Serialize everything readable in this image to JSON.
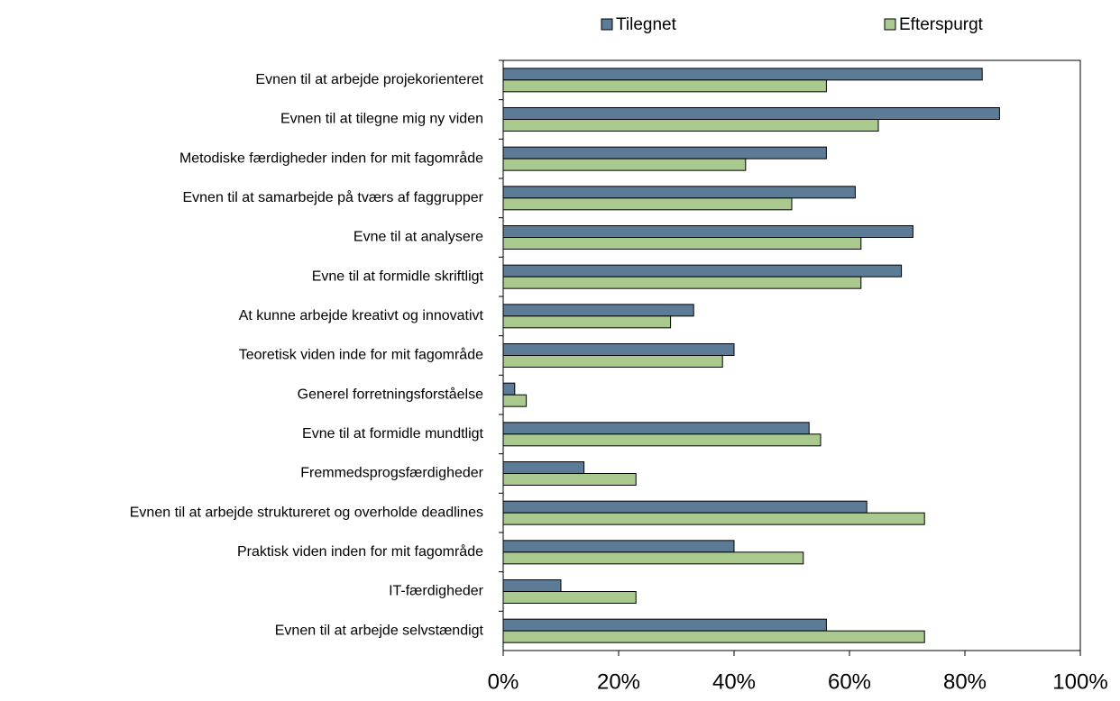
{
  "chart_data": {
    "type": "barh",
    "categories": [
      "Evnen til at arbejde projekorienteret",
      "Evnen til at tilegne mig ny viden",
      "Metodiske færdigheder inden for mit fagområde",
      "Evnen til at samarbejde på tværs af faggrupper",
      "Evne til at analysere",
      "Evne til at formidle skriftligt",
      "At kunne arbejde kreativt og innovativt",
      "Teoretisk viden inde for mit fagområde",
      "Generel forretningsforståelse",
      "Evne til at formidle mundtligt",
      "Fremmedsprogsfærdigheder",
      "Evnen til at arbejde struktureret og overholde deadlines",
      "Praktisk viden inden for mit fagområde",
      "IT-færdigheder",
      "Evnen til at arbejde selvstændigt"
    ],
    "series": [
      {
        "name": "Tilegnet",
        "color": "#5b7b97",
        "values": [
          83,
          86,
          56,
          61,
          71,
          69,
          33,
          40,
          2,
          53,
          14,
          63,
          40,
          10,
          56
        ]
      },
      {
        "name": "Efterspurgt",
        "color": "#a9c98f",
        "values": [
          56,
          65,
          42,
          50,
          62,
          62,
          29,
          38,
          4,
          55,
          23,
          73,
          52,
          23,
          73
        ]
      }
    ],
    "xlim": [
      0,
      100
    ],
    "xticks": [
      {
        "value": 0,
        "label": "0%"
      },
      {
        "value": 20,
        "label": "20%"
      },
      {
        "value": 40,
        "label": "40%"
      },
      {
        "value": 60,
        "label": "60%"
      },
      {
        "value": 80,
        "label": "80%"
      },
      {
        "value": 100,
        "label": "100%"
      }
    ],
    "legend": "top"
  }
}
